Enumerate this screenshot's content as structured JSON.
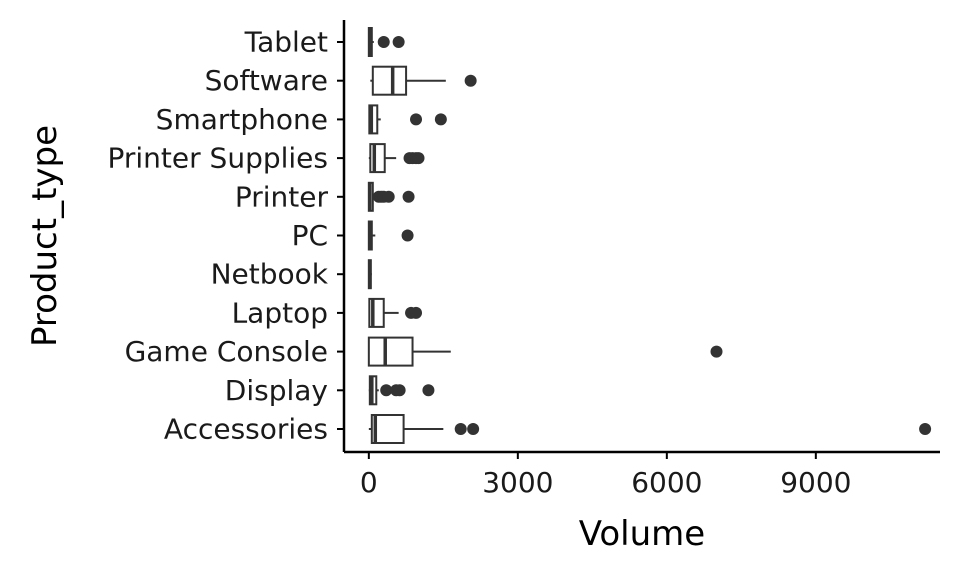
{
  "chart_data": {
    "type": "boxplot",
    "orientation": "horizontal",
    "xlabel": "Volume",
    "ylabel": "Product_type",
    "xlim": [
      -500,
      11500
    ],
    "x_ticks": [
      0,
      3000,
      6000,
      9000
    ],
    "x_tick_labels": [
      "0",
      "3000",
      "6000",
      "9000"
    ],
    "grid": false,
    "legend": "none",
    "colors": {
      "box_fill": "#ffffff",
      "stroke": "#333333",
      "outlier": "#333333",
      "axis": "#000000"
    },
    "categories": [
      "Accessories",
      "Display",
      "Game Console",
      "Laptop",
      "Netbook",
      "PC",
      "Printer",
      "Printer Supplies",
      "Smartphone",
      "Software",
      "Tablet"
    ],
    "boxes": [
      {
        "category": "Accessories",
        "whisker_low": 0,
        "q1": 60,
        "median": 130,
        "q3": 700,
        "whisker_high": 1500,
        "outliers": [
          1850,
          2100,
          11200
        ]
      },
      {
        "category": "Display",
        "whisker_low": 0,
        "q1": 20,
        "median": 60,
        "q3": 150,
        "whisker_high": 200,
        "outliers": [
          350,
          550,
          620,
          1200
        ]
      },
      {
        "category": "Game Console",
        "whisker_low": 0,
        "q1": 0,
        "median": 330,
        "q3": 880,
        "whisker_high": 1650,
        "outliers": [
          7000
        ]
      },
      {
        "category": "Laptop",
        "whisker_low": 0,
        "q1": 10,
        "median": 80,
        "q3": 300,
        "whisker_high": 600,
        "outliers": [
          850,
          950
        ]
      },
      {
        "category": "Netbook",
        "whisker_low": 0,
        "q1": 0,
        "median": 20,
        "q3": 40,
        "whisker_high": 60,
        "outliers": []
      },
      {
        "category": "PC",
        "whisker_low": 0,
        "q1": 0,
        "median": 20,
        "q3": 60,
        "whisker_high": 130,
        "outliers": [
          780
        ]
      },
      {
        "category": "Printer",
        "whisker_low": 0,
        "q1": 0,
        "median": 20,
        "q3": 80,
        "whisker_high": 150,
        "outliers": [
          200,
          250,
          300,
          400,
          800
        ]
      },
      {
        "category": "Printer Supplies",
        "whisker_low": 0,
        "q1": 30,
        "median": 110,
        "q3": 320,
        "whisker_high": 550,
        "outliers": [
          820,
          880,
          950,
          1000
        ]
      },
      {
        "category": "Smartphone",
        "whisker_low": 0,
        "q1": 10,
        "median": 50,
        "q3": 170,
        "whisker_high": 240,
        "outliers": [
          950,
          1450
        ]
      },
      {
        "category": "Software",
        "whisker_low": 30,
        "q1": 80,
        "median": 480,
        "q3": 750,
        "whisker_high": 1550,
        "outliers": [
          2050
        ]
      },
      {
        "category": "Tablet",
        "whisker_low": 0,
        "q1": 0,
        "median": 20,
        "q3": 60,
        "whisker_high": 100,
        "outliers": [
          300,
          600
        ]
      }
    ]
  }
}
